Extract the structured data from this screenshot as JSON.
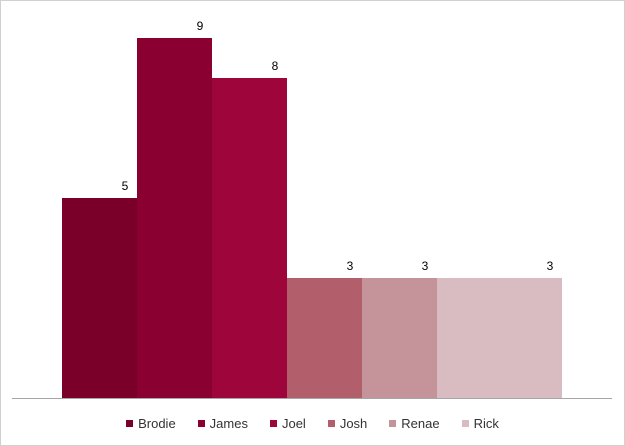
{
  "chart_data": {
    "type": "bar",
    "categories": [
      "Brodie",
      "James",
      "Joel",
      "Josh",
      "Renae",
      "Rick"
    ],
    "values": [
      5,
      9,
      8,
      3,
      3,
      3
    ],
    "value_labels": [
      "5",
      "9",
      "8",
      "3",
      "3",
      "3"
    ],
    "colors": [
      "#7b0029",
      "#8a0030",
      "#9d053b",
      "#b35e6b",
      "#c4949a",
      "#d8bcc1"
    ],
    "ylim": [
      0,
      9.5
    ],
    "grid": false,
    "legend_position": "bottom",
    "title": "",
    "xlabel": "",
    "ylabel": ""
  }
}
